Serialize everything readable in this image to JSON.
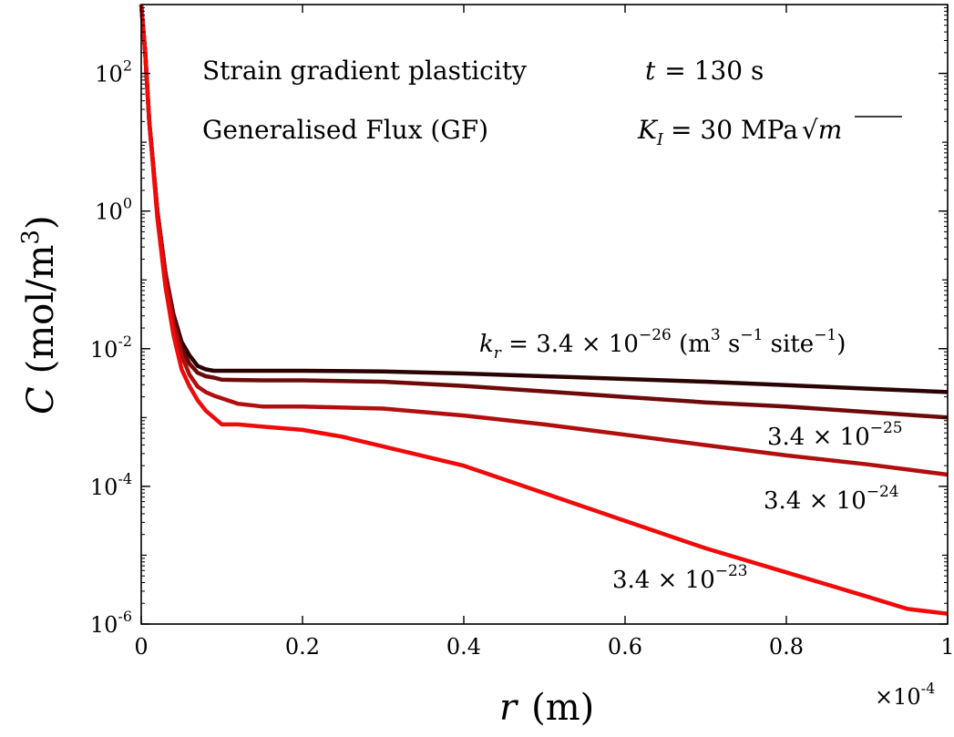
{
  "chart_data": {
    "type": "line",
    "annotations": {
      "model": "Strain gradient plasticity",
      "flux": "Generalised Flux (GF)",
      "time_var": "t",
      "time_val": "= 130 s",
      "k_var": "K",
      "k_sub": "I",
      "k_val": "= 30 MPa",
      "k_unit": "m"
    },
    "xlabel": {
      "var": "r",
      "unit": "(m)"
    },
    "ylabel": {
      "var": "C",
      "unit_pre": "(mol/m",
      "unit_exp": "3",
      "unit_post": ")"
    },
    "x_multiplier": {
      "prefix": "×10",
      "exp": "-4"
    },
    "xlim": [
      0,
      1
    ],
    "ylim_log10": [
      -6,
      3
    ],
    "y_scale": "log",
    "x_ticks": [
      "0",
      "0.2",
      "0.4",
      "0.6",
      "0.8",
      "1"
    ],
    "x_tick_values": [
      0,
      0.2,
      0.4,
      0.6,
      0.8,
      1
    ],
    "y_ticks": [
      {
        "base": "10",
        "exp": "2",
        "value": 2
      },
      {
        "base": "10",
        "exp": "0",
        "value": 0
      },
      {
        "base": "10",
        "exp": "-2",
        "value": -2
      },
      {
        "base": "10",
        "exp": "-4",
        "value": -4
      },
      {
        "base": "10",
        "exp": "-6",
        "value": -6
      }
    ],
    "grid": false,
    "series": [
      {
        "label": {
          "prefix": "k",
          "sub": "r",
          "mid": " = 3.4 × 10",
          "exp": "−26",
          "suffix_pre": " (m",
          "suffix_exp1": "3",
          "suffix_mid": " s",
          "suffix_exp2": "−1",
          "suffix_mid2": " site",
          "suffix_exp3": "−1",
          "suffix_post": ")"
        },
        "color": "#2a0404",
        "x": [
          0,
          0.005,
          0.01,
          0.02,
          0.03,
          0.04,
          0.05,
          0.06,
          0.07,
          0.08,
          0.09,
          0.1,
          0.15,
          0.2,
          0.3,
          0.4,
          0.5,
          0.6,
          0.7,
          0.8,
          0.9,
          1.0
        ],
        "log10_y": [
          3.0,
          2.3,
          1.3,
          0.0,
          -0.9,
          -1.5,
          -1.9,
          -2.1,
          -2.25,
          -2.3,
          -2.32,
          -2.32,
          -2.32,
          -2.32,
          -2.33,
          -2.36,
          -2.4,
          -2.44,
          -2.48,
          -2.53,
          -2.58,
          -2.63
        ]
      },
      {
        "label": {
          "prefix": "",
          "sub": "",
          "mid": "3.4 × 10",
          "exp": "−25",
          "suffix_pre": "",
          "suffix_exp1": "",
          "suffix_mid": "",
          "suffix_exp2": "",
          "suffix_mid2": "",
          "suffix_exp3": "",
          "suffix_post": ""
        },
        "color": "#6e0a0a",
        "x": [
          0,
          0.005,
          0.01,
          0.02,
          0.03,
          0.04,
          0.05,
          0.06,
          0.07,
          0.08,
          0.09,
          0.1,
          0.15,
          0.2,
          0.3,
          0.4,
          0.5,
          0.6,
          0.7,
          0.8,
          0.9,
          1.0
        ],
        "log10_y": [
          3.0,
          2.3,
          1.3,
          0.0,
          -0.9,
          -1.55,
          -2.0,
          -2.22,
          -2.35,
          -2.4,
          -2.42,
          -2.45,
          -2.46,
          -2.46,
          -2.48,
          -2.54,
          -2.62,
          -2.7,
          -2.78,
          -2.84,
          -2.92,
          -3.0
        ]
      },
      {
        "label": {
          "prefix": "",
          "sub": "",
          "mid": "3.4 × 10",
          "exp": "−24",
          "suffix_pre": "",
          "suffix_exp1": "",
          "suffix_mid": "",
          "suffix_exp2": "",
          "suffix_mid2": "",
          "suffix_exp3": "",
          "suffix_post": ""
        },
        "color": "#b10e0e",
        "x": [
          0,
          0.005,
          0.01,
          0.02,
          0.03,
          0.04,
          0.05,
          0.06,
          0.07,
          0.08,
          0.09,
          0.1,
          0.12,
          0.15,
          0.2,
          0.3,
          0.4,
          0.5,
          0.6,
          0.7,
          0.8,
          0.9,
          1.0
        ],
        "log10_y": [
          3.0,
          2.3,
          1.3,
          0.0,
          -0.95,
          -1.65,
          -2.1,
          -2.38,
          -2.55,
          -2.63,
          -2.68,
          -2.72,
          -2.8,
          -2.84,
          -2.84,
          -2.87,
          -2.97,
          -3.1,
          -3.25,
          -3.4,
          -3.55,
          -3.68,
          -3.83
        ]
      },
      {
        "label": {
          "prefix": "",
          "sub": "",
          "mid": "3.4 × 10",
          "exp": "−23",
          "suffix_pre": "",
          "suffix_exp1": "",
          "suffix_mid": "",
          "suffix_exp2": "",
          "suffix_mid2": "",
          "suffix_exp3": "",
          "suffix_post": ""
        },
        "color": "#f00a0a",
        "x": [
          0,
          0.005,
          0.01,
          0.02,
          0.03,
          0.04,
          0.05,
          0.06,
          0.07,
          0.08,
          0.09,
          0.1,
          0.12,
          0.15,
          0.2,
          0.25,
          0.3,
          0.4,
          0.5,
          0.6,
          0.7,
          0.8,
          0.9,
          0.95,
          1.0
        ],
        "log10_y": [
          3.0,
          2.3,
          1.3,
          -0.1,
          -1.1,
          -1.8,
          -2.3,
          -2.55,
          -2.75,
          -2.9,
          -3.0,
          -3.1,
          -3.1,
          -3.13,
          -3.18,
          -3.28,
          -3.42,
          -3.7,
          -4.1,
          -4.5,
          -4.9,
          -5.25,
          -5.6,
          -5.78,
          -5.85
        ]
      }
    ]
  }
}
